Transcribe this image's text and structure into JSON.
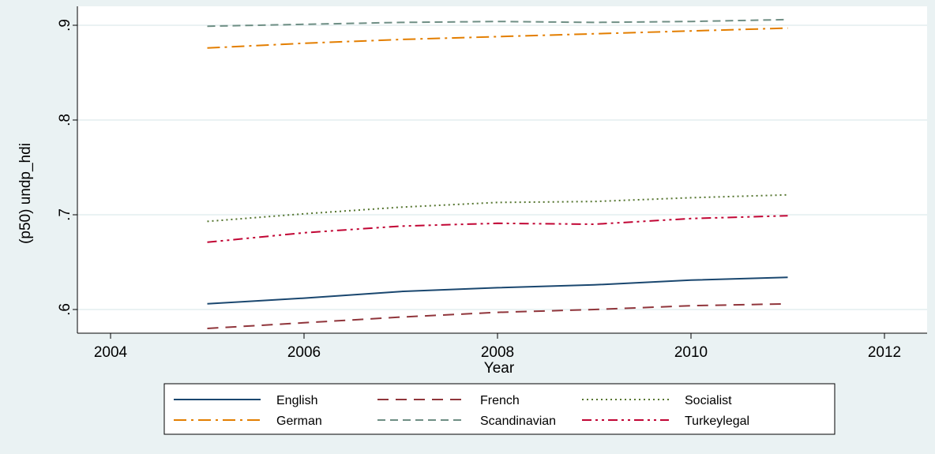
{
  "chart_data": {
    "type": "line",
    "title": "",
    "xlabel": "Year",
    "ylabel": "(p50) undp_hdi",
    "xlim": [
      2004,
      2012
    ],
    "ylim": [
      0.575,
      0.92
    ],
    "x_ticks": [
      2004,
      2006,
      2008,
      2010,
      2012
    ],
    "x_tick_labels": [
      "2004",
      "2006",
      "2008",
      "2010",
      "2012"
    ],
    "y_ticks": [
      0.6,
      0.7,
      0.8,
      0.9
    ],
    "y_tick_labels": [
      ".6",
      ".7",
      ".8",
      ".9"
    ],
    "grid": true,
    "legend_position": "bottom",
    "x": [
      2005,
      2006,
      2007,
      2008,
      2009,
      2010,
      2011
    ],
    "series": [
      {
        "name": "English",
        "color": "#1a476f",
        "dash": "solid",
        "values": [
          0.606,
          0.612,
          0.619,
          0.623,
          0.626,
          0.631,
          0.634
        ]
      },
      {
        "name": "French",
        "color": "#90353b",
        "dash": "longdash",
        "values": [
          0.58,
          0.586,
          0.592,
          0.597,
          0.6,
          0.604,
          0.606
        ]
      },
      {
        "name": "Socialist",
        "color": "#55752f",
        "dash": "dot",
        "values": [
          0.693,
          0.701,
          0.708,
          0.713,
          0.714,
          0.718,
          0.721
        ]
      },
      {
        "name": "German",
        "color": "#e37e00",
        "dash": "dashdot",
        "values": [
          0.876,
          0.881,
          0.885,
          0.888,
          0.891,
          0.894,
          0.897
        ]
      },
      {
        "name": "Scandinavian",
        "color": "#6e8e84",
        "dash": "dash",
        "values": [
          0.899,
          0.901,
          0.903,
          0.904,
          0.903,
          0.904,
          0.906
        ]
      },
      {
        "name": "Turkeylegal",
        "color": "#c10534",
        "dash": "dashdotdot",
        "values": [
          0.671,
          0.681,
          0.688,
          0.691,
          0.69,
          0.696,
          0.699
        ]
      }
    ]
  }
}
